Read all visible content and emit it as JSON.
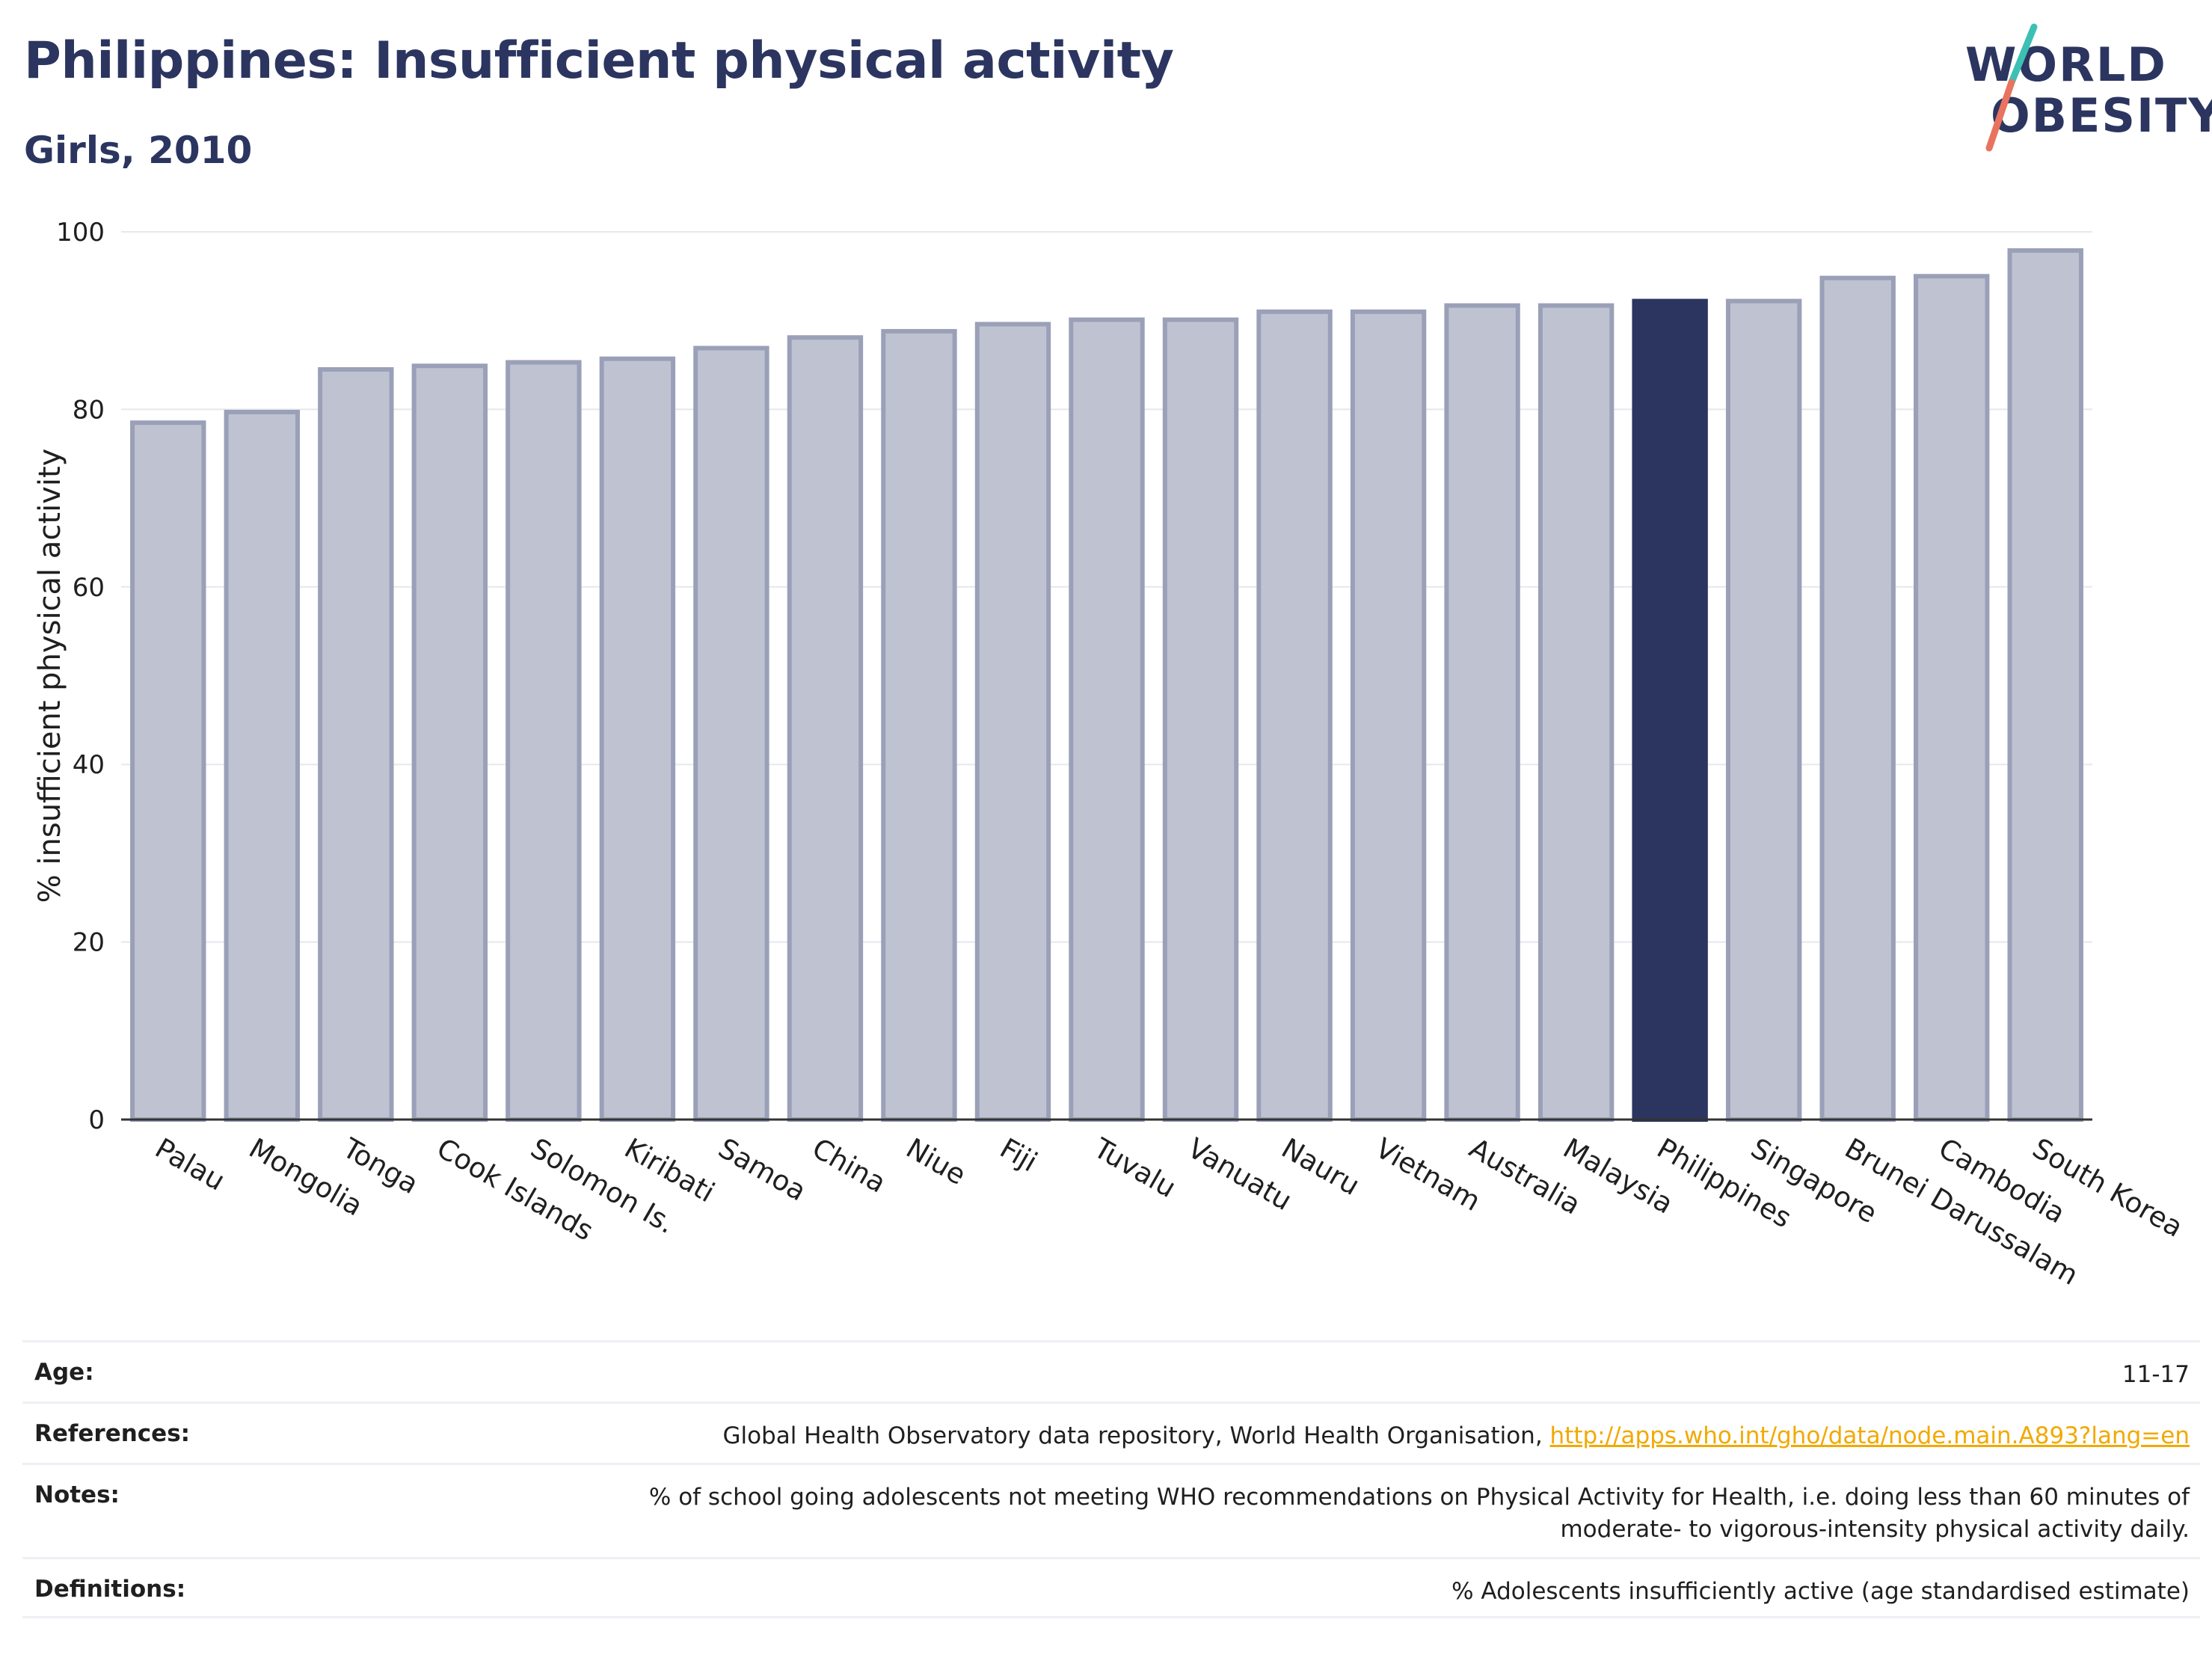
{
  "header": {
    "title": "Philippines: Insufficient physical activity",
    "subtitle": "Girls, 2010"
  },
  "logo": {
    "line1": "WORLD",
    "line2": "OBESITY",
    "colors": {
      "text": "#2b3560",
      "slash_top": "#3cc0b4",
      "slash_bottom": "#e8735f"
    }
  },
  "colors": {
    "bar": "#bfc3d1",
    "bar_border": "#9aa0b8",
    "highlight": "#2b3560",
    "grid": "#e6e8ee",
    "link": "#f2a900"
  },
  "chart_data": {
    "type": "bar",
    "ylabel": "% insufficient physical activity",
    "xlabel": "",
    "ylim": [
      0,
      100
    ],
    "yticks": [
      0,
      20,
      40,
      60,
      80,
      100
    ],
    "grid": true,
    "highlight": "Philippines",
    "categories": [
      "Palau",
      "Mongolia",
      "Tonga",
      "Cook Islands",
      "Solomon Is.",
      "Kiribati",
      "Samoa",
      "China",
      "Niue",
      "Fiji",
      "Tuvalu",
      "Vanuatu",
      "Nauru",
      "Vietnam",
      "Australia",
      "Malaysia",
      "Philippines",
      "Singapore",
      "Brunei Darussalam",
      "Cambodia",
      "South Korea"
    ],
    "values": [
      78.5,
      79.7,
      84.5,
      84.9,
      85.3,
      85.7,
      86.9,
      88.1,
      88.8,
      89.6,
      90.1,
      90.1,
      91.0,
      91.0,
      91.7,
      91.7,
      92.2,
      92.2,
      94.8,
      95.0,
      97.9
    ]
  },
  "meta": {
    "age_label": "Age:",
    "age_value": "11-17",
    "references_label": "References:",
    "references_text": "Global Health Observatory data repository, World Health Organisation, ",
    "references_link": "http://apps.who.int/gho/data/node.main.A893?lang=en",
    "notes_label": "Notes:",
    "notes_value": "% of school going adolescents not meeting WHO recommendations on Physical Activity for Health, i.e. doing less than 60 minutes of moderate- to vigorous-intensity physical activity daily.",
    "definitions_label": "Definitions:",
    "definitions_value": "% Adolescents insufficiently active (age standardised estimate)"
  }
}
